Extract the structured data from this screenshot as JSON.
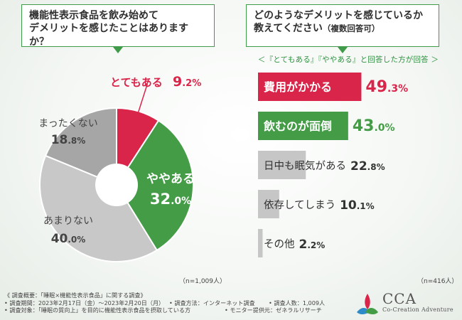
{
  "left": {
    "question_line1": "機能性表示食品を飲み始めて",
    "question_line2": "デメリットを感じたことはありますか？",
    "n_label": "（n=1,009人）"
  },
  "right": {
    "question_line1": "どのようなデメリットを感じているか",
    "question_line2": "教えてください",
    "question_sub": "（複数回答可）",
    "note": "＜『とてもある』『ややある』と回答した方が回答 ＞",
    "n_label": "（n=416人）"
  },
  "chart_data": [
    {
      "type": "pie",
      "title": "機能性表示食品を飲み始めてデメリットを感じたことはありますか？",
      "labels": [
        "とてもある",
        "ややある",
        "あまりない",
        "まったくない"
      ],
      "values": [
        9.2,
        32.0,
        40.0,
        18.8
      ],
      "display": [
        "9.2%",
        "32.0%",
        "40.0%",
        "18.8%"
      ],
      "colors": [
        "#d9254a",
        "#459c47",
        "#c8c8c8",
        "#a6a6a6"
      ],
      "n": "n=1,009人"
    },
    {
      "type": "bar",
      "orientation": "horizontal",
      "title": "どのようなデメリットを感じているか教えてください（複数回答可）",
      "categories": [
        "費用がかかる",
        "飲むのが面倒",
        "日中も眠気がある",
        "依存してしまう",
        "その他"
      ],
      "values": [
        49.3,
        43.0,
        22.8,
        10.1,
        2.2
      ],
      "display": [
        "49.3%",
        "43.0%",
        "22.8%",
        "10.1%",
        "2.2%"
      ],
      "colors": [
        "#d9254a",
        "#459c47",
        "#c6c6c6",
        "#c6c6c6",
        "#c6c6c6"
      ],
      "n": "n=416人"
    }
  ],
  "footer": {
    "line1": "《 調査概要：「睡眠×機能性表示食品」に関する調査》",
    "line2_a": "• 調査期間：2023年2月17日（金）～2023年2月20日（月）",
    "line2_b": "• 調査方法：インターネット調査",
    "line2_c": "• 調査人数：1,009人",
    "line3_a": "• 調査対象：「睡眠の質向上」を目的に機能性表示食品を摂取している方",
    "line3_b": "• モニター提供元：ゼネラルリサーチ"
  },
  "logo": {
    "name": "CCA",
    "tagline": "Co-Creation Adventure"
  }
}
